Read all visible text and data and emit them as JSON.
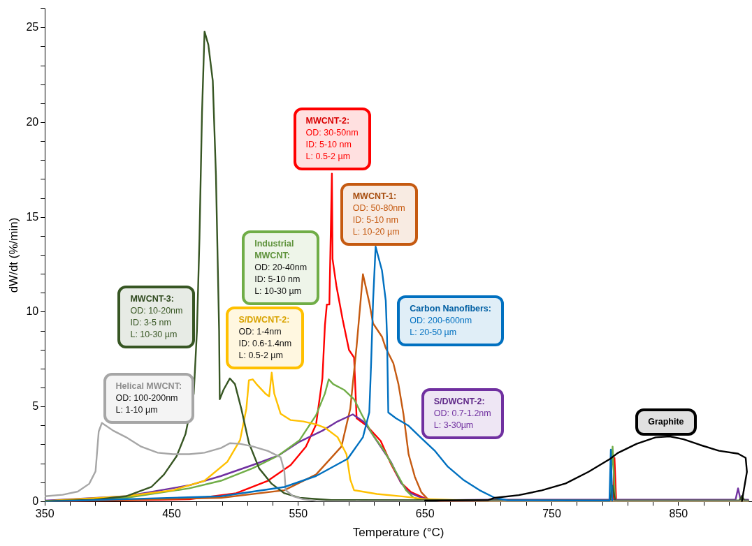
{
  "chart_data": {
    "type": "line",
    "xlabel": "Temperature (°C)",
    "ylabel": "dW/dt (%/min)",
    "xlim": [
      350,
      908
    ],
    "xticks": [
      350,
      {
        "value": 370,
        "label": null
      },
      {
        "value": 390,
        "label": null
      },
      {
        "value": 410,
        "label": null
      },
      {
        "value": 430,
        "label": null
      },
      450,
      {
        "value": 470,
        "label": null
      },
      {
        "value": 490,
        "label": null
      },
      {
        "value": 510,
        "label": null
      },
      {
        "value": 530,
        "label": null
      },
      550,
      {
        "value": 570,
        "label": null
      },
      {
        "value": 590,
        "label": null
      },
      {
        "value": 610,
        "label": null
      },
      {
        "value": 630,
        "label": null
      },
      650,
      {
        "value": 670,
        "label": null
      },
      {
        "value": 690,
        "label": null
      },
      {
        "value": 710,
        "label": null
      },
      {
        "value": 730,
        "label": null
      },
      750,
      {
        "value": 770,
        "label": null
      },
      {
        "value": 790,
        "label": null
      },
      {
        "value": 810,
        "label": null
      },
      {
        "value": 830,
        "label": null
      },
      850,
      {
        "value": 870,
        "label": null
      },
      {
        "value": 890,
        "label": null
      }
    ],
    "ylim": [
      0,
      26
    ],
    "yticks": [
      0,
      {
        "value": 1,
        "label": null
      },
      {
        "value": 2,
        "label": null
      },
      {
        "value": 3,
        "label": null
      },
      {
        "value": 4,
        "label": null
      },
      5,
      {
        "value": 6,
        "label": null
      },
      {
        "value": 7,
        "label": null
      },
      {
        "value": 8,
        "label": null
      },
      {
        "value": 9,
        "label": null
      },
      10,
      {
        "value": 11,
        "label": null
      },
      {
        "value": 12,
        "label": null
      },
      {
        "value": 13,
        "label": null
      },
      {
        "value": 14,
        "label": null
      },
      15,
      {
        "value": 16,
        "label": null
      },
      {
        "value": 17,
        "label": null
      },
      {
        "value": 18,
        "label": null
      },
      {
        "value": 19,
        "label": null
      },
      20,
      {
        "value": 21,
        "label": null
      },
      {
        "value": 22,
        "label": null
      },
      {
        "value": 23,
        "label": null
      },
      {
        "value": 24,
        "label": null
      },
      25,
      {
        "value": 26,
        "label": null
      }
    ],
    "grid": false,
    "legend": false,
    "series": [
      {
        "color": "#000000",
        "x": [
          650,
          700,
          705,
          724,
          742,
          761,
          779,
          796,
          802,
          817,
          832,
          843,
          854,
          867,
          882,
          897,
          903,
          904,
          900
        ],
        "values": [
          0.05,
          0.08,
          0.2,
          0.34,
          0.59,
          0.96,
          1.57,
          2.25,
          2.56,
          3.05,
          3.39,
          3.44,
          3.29,
          2.99,
          2.68,
          2.53,
          2.31,
          1.57,
          0
        ]
      },
      {
        "color": "#0070c0",
        "x": [
          350,
          489,
          539,
          564,
          589,
          601,
          606,
          607.5,
          609,
          611,
          616,
          619,
          620,
          621,
          627,
          637,
          647,
          658,
          668,
          680,
          693,
          705,
          715,
          795.5,
          796.6,
          797.7
        ],
        "values": [
          0,
          0.28,
          0.77,
          1.35,
          2.26,
          3.4,
          4.7,
          7.4,
          10.6,
          13.45,
          12.2,
          10.6,
          8.7,
          4.7,
          4.4,
          4.0,
          3.35,
          2.66,
          1.84,
          1.16,
          0.6,
          0.2,
          0.07,
          0.05,
          2.74,
          0.05
        ]
      },
      {
        "color": "#a6a6a6",
        "x": [
          350,
          364,
          376,
          385,
          390,
          392.5,
          395,
          404,
          414,
          426,
          439,
          451,
          464,
          476,
          489,
          496,
          504,
          514,
          526,
          536,
          539,
          540,
          546,
          554,
          564,
          600,
          905
        ],
        "values": [
          0.28,
          0.36,
          0.53,
          0.94,
          1.6,
          3.7,
          4.15,
          3.74,
          3.4,
          2.9,
          2.58,
          2.5,
          2.5,
          2.58,
          2.83,
          3.08,
          3.05,
          2.91,
          2.67,
          2.34,
          1.6,
          0.61,
          0.28,
          0.12,
          0.03,
          0.02,
          0.02
        ]
      },
      {
        "color": "#375623",
        "x": [
          350,
          389,
          414,
          434,
          444,
          454,
          461,
          467.5,
          470,
          472,
          474,
          476,
          479,
          482.5,
          485,
          487.5,
          488,
          491,
          496,
          500,
          505,
          511,
          519,
          529,
          539,
          551,
          576,
          796,
          798,
          800,
          898,
          900,
          902,
          905
        ],
        "values": [
          0.03,
          0.1,
          0.28,
          0.77,
          1.43,
          2.4,
          3.57,
          5.7,
          9.0,
          13.9,
          20.5,
          24.8,
          24.1,
          22.2,
          17.2,
          9.0,
          5.4,
          5.9,
          6.5,
          6.2,
          4.9,
          3.1,
          1.76,
          0.94,
          0.44,
          0.2,
          0.08,
          0.05,
          0.84,
          0.05,
          0.05,
          0.3,
          0.05,
          0.05
        ]
      },
      {
        "color": "#ffc000",
        "x": [
          350,
          414,
          451,
          476,
          494,
          504,
          509,
          511,
          514,
          517,
          524,
          527,
          529,
          531,
          536,
          544,
          554,
          564,
          571,
          581,
          588,
          591,
          594,
          612,
          633,
          649,
          700,
          905
        ],
        "values": [
          0.03,
          0.28,
          0.6,
          1.1,
          2.1,
          3.24,
          4.9,
          6.4,
          6.45,
          6.2,
          5.7,
          5.55,
          6.8,
          5.7,
          4.64,
          4.3,
          4.23,
          4.07,
          3.9,
          3.4,
          2.5,
          1.16,
          0.6,
          0.4,
          0.27,
          0.14,
          0.03,
          0.03
        ]
      },
      {
        "color": "#70ad47",
        "x": [
          350,
          414,
          464,
          489,
          514,
          534,
          551,
          564,
          571,
          574,
          577.5,
          586,
          594,
          600,
          608,
          618,
          627,
          635,
          641,
          647,
          700,
          796,
          798,
          800,
          905
        ],
        "values": [
          0.03,
          0.2,
          0.7,
          1.1,
          1.76,
          2.42,
          3.24,
          4.56,
          5.7,
          6.45,
          6.2,
          5.9,
          5.4,
          4.6,
          3.6,
          2.66,
          1.57,
          0.6,
          0.2,
          0.07,
          0.05,
          0.05,
          2.9,
          0.05,
          0.05
        ]
      },
      {
        "color": "#7030a0",
        "x": [
          350,
          414,
          464,
          489,
          514,
          534,
          551,
          569,
          581,
          593,
          602,
          612,
          623,
          631,
          637,
          647,
          656,
          700,
          800,
          895,
          897,
          899,
          905
        ],
        "values": [
          0.05,
          0.28,
          0.86,
          1.35,
          1.93,
          2.42,
          3.16,
          3.74,
          4.23,
          4.6,
          4.2,
          3.2,
          2.1,
          1.0,
          0.5,
          0.2,
          0.07,
          0.1,
          0.1,
          0.1,
          0.7,
          0.1,
          0.1
        ]
      },
      {
        "color": "#c55a11",
        "x": [
          350,
          489,
          539,
          564,
          584,
          591,
          596,
          601,
          606,
          609,
          616,
          619,
          625,
          629,
          633,
          637,
          642,
          647,
          652,
          664,
          905
        ],
        "values": [
          0,
          0.2,
          0.6,
          1.43,
          2.9,
          4.9,
          8.2,
          12.0,
          10.5,
          9.4,
          8.7,
          8.1,
          7.3,
          6.2,
          4.6,
          2.5,
          1.3,
          0.5,
          0.14,
          0.02,
          0.02
        ]
      },
      {
        "color": "#ff0000",
        "x": [
          350,
          464,
          501,
          526,
          544,
          556,
          564,
          569,
          571,
          572.5,
          574.5,
          576,
          576.5,
          577,
          580,
          585,
          590,
          594,
          596,
          604,
          615,
          623,
          631,
          639,
          651,
          664,
          798.2,
          799.5,
          800.8
        ],
        "values": [
          0,
          0.12,
          0.44,
          1.1,
          1.93,
          2.9,
          4.07,
          6.5,
          9.3,
          10.4,
          10.4,
          15.6,
          17.3,
          12.8,
          11.4,
          9.6,
          8.0,
          7.6,
          4.4,
          4.0,
          3.2,
          2.0,
          1.0,
          0.5,
          0.14,
          0,
          0,
          2.3,
          0
        ]
      }
    ],
    "annotations": [
      "Graphite",
      "Carbon Nanofibers:\nOD: 200-600nm\nL: 20-50 µm",
      "Helical MWCNT:\nOD: 100-200nm\nL: 1-10 µm",
      "MWCNT-3:\nOD: 10-20nm\nID: 3-5 nm\nL: 10-30 µm",
      "S/DWCNT-2:\nOD: 1-4nm\nID: 0.6-1.4nm\nL: 0.5-2 µm",
      "Industrial\nMWCNT:\nOD: 20-40nm\nID: 5-10 nm\nL: 10-30 µm",
      "S/DWCNT-2:\nOD: 0.7-1.2nm\nL: 3-30µm",
      "MWCNT-1:\nOD: 50-80nm\nID: 5-10 nm\nL: 10-20 µm",
      "MWCNT-2:\nOD: 30-50nm\nID: 5-10 nm\nL: 0.5-2 µm"
    ]
  }
}
